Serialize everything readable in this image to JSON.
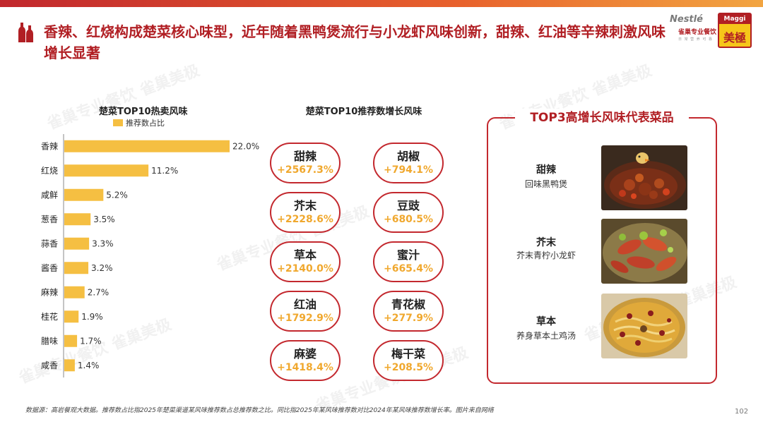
{
  "headline": "香辣、红烧构成楚菜核心味型，近年随着黑鸭煲流行与小龙虾风味创新，甜辣、红油等辛辣刺激风味增长显著",
  "logos": {
    "nestle": "Nestlé",
    "nestle_sub": "雀巢专业餐饮",
    "nestle_sub2": "日 常 营 养 可 靠",
    "maggi": "Maggi",
    "maggi_cn": "美極"
  },
  "watermark_text": "雀巢专业餐饮 雀巢美极",
  "colors": {
    "accent": "#b11f24",
    "bar": "#f5bf42",
    "growth": "#f0a82e",
    "border": "#c3282e"
  },
  "chart_data": [
    {
      "type": "bar",
      "orientation": "horizontal",
      "title": "楚菜TOP10热卖风味",
      "legend": [
        "推荐数占比"
      ],
      "legend_position": "top",
      "categories": [
        "香辣",
        "红烧",
        "咸鲜",
        "葱香",
        "蒜香",
        "酱香",
        "麻辣",
        "桂花",
        "腊味",
        "咸香"
      ],
      "values": [
        22.0,
        11.2,
        5.2,
        3.5,
        3.3,
        3.2,
        2.7,
        1.9,
        1.7,
        1.4
      ],
      "value_labels": [
        "22.0%",
        "11.2%",
        "5.2%",
        "3.5%",
        "3.3%",
        "3.2%",
        "2.7%",
        "1.9%",
        "1.7%",
        "1.4%"
      ],
      "unit": "%",
      "xlim": [
        0,
        22
      ],
      "grid": false
    },
    {
      "type": "table",
      "title": "楚菜TOP10推荐数增长风味",
      "rows": [
        {
          "flavor": "甜辣",
          "growth": "+2567.3%"
        },
        {
          "flavor": "胡椒",
          "growth": "+794.1%"
        },
        {
          "flavor": "芥末",
          "growth": "+2228.6%"
        },
        {
          "flavor": "豆豉",
          "growth": "+680.5%"
        },
        {
          "flavor": "草本",
          "growth": "+2140.0%"
        },
        {
          "flavor": "蜜汁",
          "growth": "+665.4%"
        },
        {
          "flavor": "红油",
          "growth": "+1792.9%"
        },
        {
          "flavor": "青花椒",
          "growth": "+277.9%"
        },
        {
          "flavor": "麻婆",
          "growth": "+1418.4%"
        },
        {
          "flavor": "梅干菜",
          "growth": "+208.5%"
        }
      ]
    }
  ],
  "growth_left": [
    {
      "name": "甜辣",
      "val": "+2567.3%"
    },
    {
      "name": "芥末",
      "val": "+2228.6%"
    },
    {
      "name": "草本",
      "val": "+2140.0%"
    },
    {
      "name": "红油",
      "val": "+1792.9%"
    },
    {
      "name": "麻婆",
      "val": "+1418.4%"
    }
  ],
  "growth_right": [
    {
      "name": "胡椒",
      "val": "+794.1%"
    },
    {
      "name": "豆豉",
      "val": "+680.5%"
    },
    {
      "name": "蜜汁",
      "val": "+665.4%"
    },
    {
      "name": "青花椒",
      "val": "+277.9%"
    },
    {
      "name": "梅干菜",
      "val": "+208.5%"
    }
  ],
  "top3": {
    "title": "TOP3高增长风味代表菜品",
    "dishes": [
      {
        "flavor": "甜辣",
        "dish": "回味黑鸭煲"
      },
      {
        "flavor": "芥末",
        "dish": "芥末青柠小龙虾"
      },
      {
        "flavor": "草本",
        "dish": "养身草本土鸡汤"
      }
    ]
  },
  "footnote": "数据源：高岩餐观大数据。推荐数占比指2025年楚菜渠道某风味推荐数占总推荐数之比。同比指2025年某风味推荐数对比2024年某风味推荐数增长率。图片来自网络",
  "page_number": "102"
}
